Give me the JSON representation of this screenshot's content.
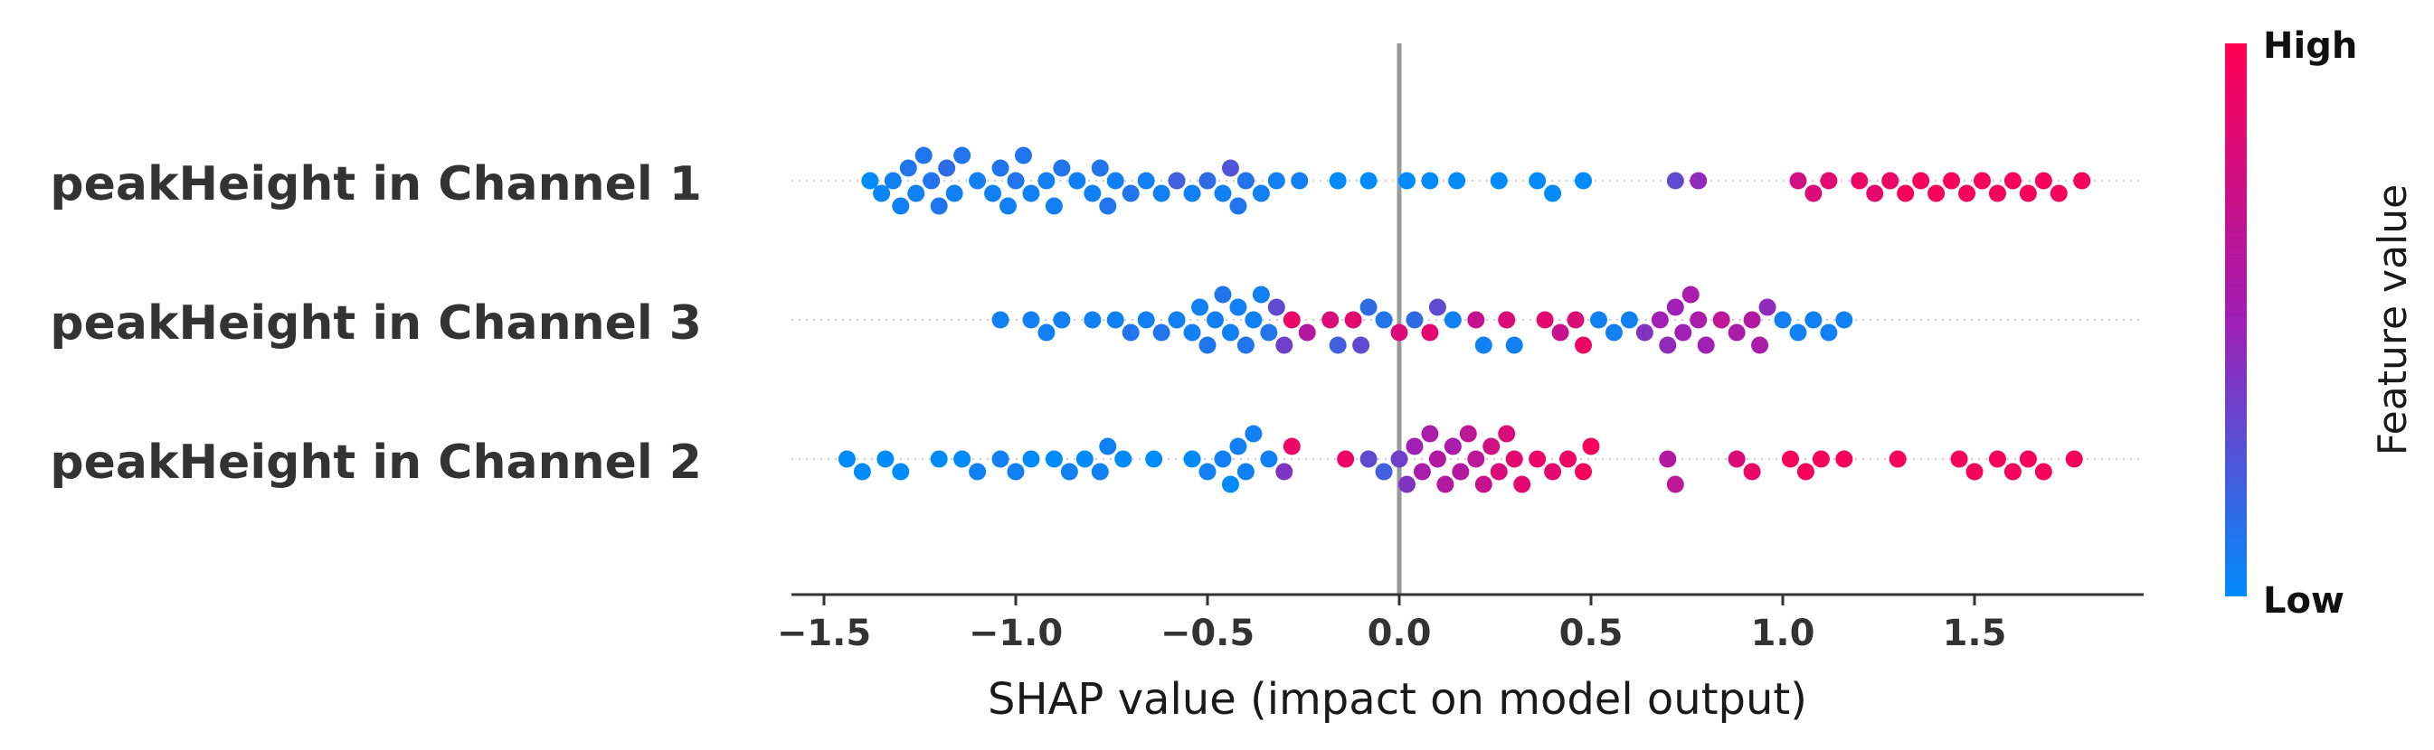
{
  "chart_data": {
    "type": "scatter",
    "subtype": "shap-beeswarm",
    "xlabel": "SHAP value (impact on model output)",
    "xlim": [
      -1.6,
      1.95
    ],
    "xticks": [
      -1.5,
      -1.0,
      -0.5,
      0.0,
      0.5,
      1.0,
      1.5
    ],
    "xtick_labels": [
      "−1.5",
      "−1.0",
      "−0.5",
      "0.0",
      "0.5",
      "1.0",
      "1.5"
    ],
    "zero_line": true,
    "colorbar": {
      "title": "Feature value",
      "high_label": "High",
      "low_label": "Low",
      "low_color": "#008bfb",
      "mid_color": "#a01fb4",
      "high_color": "#ff0052"
    },
    "features": [
      {
        "name": "peakHeight in Channel 1",
        "points": [
          [
            -1.38,
            0.0
          ],
          [
            -1.35,
            0.03
          ],
          [
            -1.32,
            0.05
          ],
          [
            -1.3,
            0.05
          ],
          [
            -1.28,
            0.1
          ],
          [
            -1.26,
            0.05
          ],
          [
            -1.24,
            0.1
          ],
          [
            -1.22,
            0.1
          ],
          [
            -1.2,
            0.1
          ],
          [
            -1.18,
            0.15
          ],
          [
            -1.16,
            0.05
          ],
          [
            -1.14,
            0.1
          ],
          [
            -1.1,
            0.05
          ],
          [
            -1.06,
            0.05
          ],
          [
            -1.04,
            0.1
          ],
          [
            -1.02,
            0.05
          ],
          [
            -1.0,
            0.1
          ],
          [
            -0.98,
            0.1
          ],
          [
            -0.96,
            0.05
          ],
          [
            -0.92,
            0.05
          ],
          [
            -0.9,
            0.05
          ],
          [
            -0.88,
            0.1
          ],
          [
            -0.84,
            0.05
          ],
          [
            -0.8,
            0.05
          ],
          [
            -0.78,
            0.1
          ],
          [
            -0.76,
            0.1
          ],
          [
            -0.74,
            0.05
          ],
          [
            -0.7,
            0.1
          ],
          [
            -0.66,
            0.05
          ],
          [
            -0.62,
            0.05
          ],
          [
            -0.58,
            0.2
          ],
          [
            -0.54,
            0.05
          ],
          [
            -0.5,
            0.15
          ],
          [
            -0.46,
            0.05
          ],
          [
            -0.44,
            0.25
          ],
          [
            -0.42,
            0.1
          ],
          [
            -0.4,
            0.1
          ],
          [
            -0.36,
            0.05
          ],
          [
            -0.32,
            0.05
          ],
          [
            -0.26,
            0.05
          ],
          [
            -0.16,
            0.0
          ],
          [
            -0.08,
            0.0
          ],
          [
            0.02,
            0.0
          ],
          [
            0.08,
            0.0
          ],
          [
            0.15,
            0.0
          ],
          [
            0.26,
            0.0
          ],
          [
            0.36,
            0.0
          ],
          [
            0.4,
            0.0
          ],
          [
            0.48,
            0.0
          ],
          [
            0.72,
            0.3
          ],
          [
            0.78,
            0.45
          ],
          [
            1.04,
            0.75
          ],
          [
            1.08,
            0.8
          ],
          [
            1.12,
            0.85
          ],
          [
            1.2,
            0.9
          ],
          [
            1.24,
            0.85
          ],
          [
            1.28,
            0.9
          ],
          [
            1.32,
            0.95
          ],
          [
            1.36,
            0.95
          ],
          [
            1.4,
            0.95
          ],
          [
            1.44,
            0.95
          ],
          [
            1.48,
            0.95
          ],
          [
            1.52,
            0.95
          ],
          [
            1.56,
            0.95
          ],
          [
            1.6,
            0.95
          ],
          [
            1.64,
            0.95
          ],
          [
            1.68,
            0.95
          ],
          [
            1.72,
            0.95
          ],
          [
            1.78,
            0.95
          ]
        ]
      },
      {
        "name": "peakHeight in Channel 3",
        "points": [
          [
            -1.04,
            0.05
          ],
          [
            -0.96,
            0.05
          ],
          [
            -0.92,
            0.05
          ],
          [
            -0.88,
            0.05
          ],
          [
            -0.8,
            0.05
          ],
          [
            -0.74,
            0.05
          ],
          [
            -0.7,
            0.1
          ],
          [
            -0.66,
            0.05
          ],
          [
            -0.62,
            0.1
          ],
          [
            -0.58,
            0.05
          ],
          [
            -0.54,
            0.05
          ],
          [
            -0.52,
            0.05
          ],
          [
            -0.5,
            0.1
          ],
          [
            -0.48,
            0.05
          ],
          [
            -0.46,
            0.1
          ],
          [
            -0.44,
            0.05
          ],
          [
            -0.42,
            0.05
          ],
          [
            -0.4,
            0.1
          ],
          [
            -0.38,
            0.05
          ],
          [
            -0.36,
            0.05
          ],
          [
            -0.34,
            0.1
          ],
          [
            -0.32,
            0.3
          ],
          [
            -0.3,
            0.35
          ],
          [
            -0.28,
            0.9
          ],
          [
            -0.24,
            0.6
          ],
          [
            -0.18,
            0.8
          ],
          [
            -0.16,
            0.2
          ],
          [
            -0.12,
            0.85
          ],
          [
            -0.1,
            0.3
          ],
          [
            -0.08,
            0.15
          ],
          [
            -0.04,
            0.1
          ],
          [
            0.0,
            0.8
          ],
          [
            0.04,
            0.15
          ],
          [
            0.08,
            0.85
          ],
          [
            0.1,
            0.3
          ],
          [
            0.14,
            0.05
          ],
          [
            0.2,
            0.7
          ],
          [
            0.22,
            0.05
          ],
          [
            0.28,
            0.8
          ],
          [
            0.3,
            0.05
          ],
          [
            0.38,
            0.85
          ],
          [
            0.42,
            0.7
          ],
          [
            0.46,
            0.8
          ],
          [
            0.48,
            0.9
          ],
          [
            0.52,
            0.05
          ],
          [
            0.56,
            0.05
          ],
          [
            0.6,
            0.05
          ],
          [
            0.64,
            0.4
          ],
          [
            0.68,
            0.5
          ],
          [
            0.7,
            0.45
          ],
          [
            0.72,
            0.5
          ],
          [
            0.74,
            0.5
          ],
          [
            0.76,
            0.55
          ],
          [
            0.78,
            0.55
          ],
          [
            0.8,
            0.5
          ],
          [
            0.84,
            0.65
          ],
          [
            0.88,
            0.55
          ],
          [
            0.92,
            0.6
          ],
          [
            0.94,
            0.55
          ],
          [
            0.96,
            0.45
          ],
          [
            1.0,
            0.05
          ],
          [
            1.04,
            0.05
          ],
          [
            1.08,
            0.05
          ],
          [
            1.12,
            0.05
          ],
          [
            1.16,
            0.05
          ]
        ]
      },
      {
        "name": "peakHeight in Channel 2",
        "points": [
          [
            -1.44,
            0.0
          ],
          [
            -1.4,
            0.0
          ],
          [
            -1.34,
            0.0
          ],
          [
            -1.3,
            0.0
          ],
          [
            -1.2,
            0.0
          ],
          [
            -1.14,
            0.0
          ],
          [
            -1.1,
            0.05
          ],
          [
            -1.04,
            0.05
          ],
          [
            -1.0,
            0.05
          ],
          [
            -0.96,
            0.0
          ],
          [
            -0.9,
            0.0
          ],
          [
            -0.86,
            0.05
          ],
          [
            -0.82,
            0.0
          ],
          [
            -0.78,
            0.05
          ],
          [
            -0.76,
            0.05
          ],
          [
            -0.72,
            0.0
          ],
          [
            -0.64,
            0.0
          ],
          [
            -0.54,
            0.0
          ],
          [
            -0.5,
            0.05
          ],
          [
            -0.46,
            0.05
          ],
          [
            -0.44,
            0.0
          ],
          [
            -0.42,
            0.05
          ],
          [
            -0.4,
            0.05
          ],
          [
            -0.38,
            0.05
          ],
          [
            -0.34,
            0.05
          ],
          [
            -0.3,
            0.4
          ],
          [
            -0.28,
            0.9
          ],
          [
            -0.14,
            0.9
          ],
          [
            -0.08,
            0.3
          ],
          [
            -0.04,
            0.2
          ],
          [
            0.0,
            0.35
          ],
          [
            0.02,
            0.4
          ],
          [
            0.04,
            0.5
          ],
          [
            0.06,
            0.55
          ],
          [
            0.08,
            0.55
          ],
          [
            0.1,
            0.6
          ],
          [
            0.12,
            0.6
          ],
          [
            0.14,
            0.55
          ],
          [
            0.16,
            0.6
          ],
          [
            0.18,
            0.65
          ],
          [
            0.2,
            0.65
          ],
          [
            0.22,
            0.7
          ],
          [
            0.24,
            0.75
          ],
          [
            0.26,
            0.8
          ],
          [
            0.28,
            0.8
          ],
          [
            0.3,
            0.85
          ],
          [
            0.32,
            0.85
          ],
          [
            0.36,
            0.9
          ],
          [
            0.4,
            0.85
          ],
          [
            0.44,
            0.9
          ],
          [
            0.48,
            0.95
          ],
          [
            0.5,
            0.95
          ],
          [
            0.7,
            0.6
          ],
          [
            0.72,
            0.65
          ],
          [
            0.88,
            0.8
          ],
          [
            0.92,
            0.9
          ],
          [
            1.02,
            0.95
          ],
          [
            1.06,
            0.95
          ],
          [
            1.1,
            0.95
          ],
          [
            1.16,
            0.95
          ],
          [
            1.3,
            0.95
          ],
          [
            1.46,
            0.95
          ],
          [
            1.5,
            0.95
          ],
          [
            1.56,
            0.95
          ],
          [
            1.6,
            0.95
          ],
          [
            1.64,
            0.95
          ],
          [
            1.68,
            0.95
          ],
          [
            1.76,
            0.95
          ]
        ]
      }
    ]
  }
}
